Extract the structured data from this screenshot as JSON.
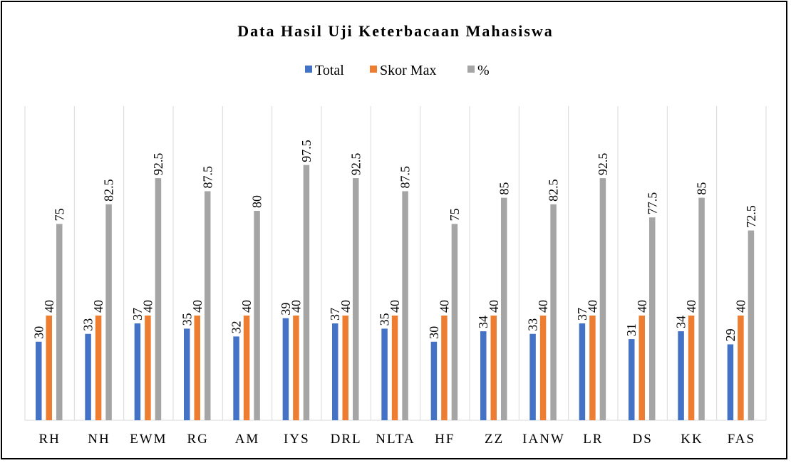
{
  "chart_data": {
    "type": "bar",
    "title": "Data Hasil Uji Keterbacaan Mahasiswa",
    "xlabel": "",
    "ylabel": "",
    "ylim": [
      0,
      120
    ],
    "grid": false,
    "legend_position": "top",
    "categories": [
      "RH",
      "NH",
      "EWM",
      "RG",
      "AM",
      "IYS",
      "DRL",
      "NLTA",
      "HF",
      "ZZ",
      "IANW",
      "LR",
      "DS",
      "KK",
      "FAS"
    ],
    "series": [
      {
        "name": "Total",
        "color": "#4472C4",
        "values": [
          30,
          33,
          37,
          35,
          32,
          39,
          37,
          35,
          30,
          34,
          33,
          37,
          31,
          34,
          29
        ]
      },
      {
        "name": "Skor Max",
        "color": "#ED7D31",
        "values": [
          40,
          40,
          40,
          40,
          40,
          40,
          40,
          40,
          40,
          40,
          40,
          40,
          40,
          40,
          40
        ]
      },
      {
        "name": "%",
        "color": "#A5A5A5",
        "values": [
          75,
          82.5,
          92.5,
          87.5,
          80,
          97.5,
          92.5,
          87.5,
          75,
          85,
          82.5,
          92.5,
          77.5,
          85,
          72.5
        ]
      }
    ]
  }
}
